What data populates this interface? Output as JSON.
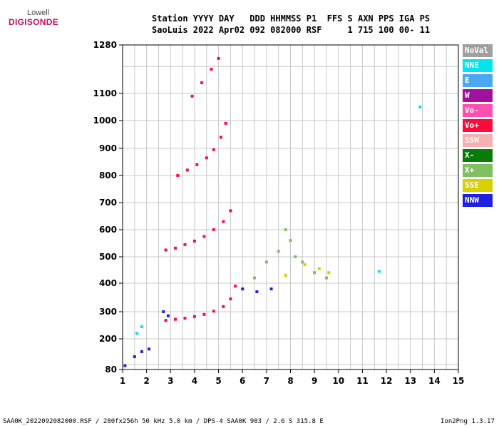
{
  "logo": {
    "line1": "Lowell",
    "line2": "DIGISONDE"
  },
  "header": {
    "line1": "Station YYYY DAY   DDD HHMMSS P1  FFS S AXN PPS IGA PS",
    "line2": "SaoLuis 2022 Apr02 092 082000 RSF     1 715 100 00- 11"
  },
  "footer": {
    "left": "SAA0K_2022092082000.RSF / 280fx256h 50 kHz 5.0 km / DPS-4 SAA0K 903 / 2.6 S 315.8 E",
    "right": "Ion2Png 1.3.17"
  },
  "legend": [
    {
      "label": "NoVal",
      "color": "#a0a0a0"
    },
    {
      "label": "NNE",
      "color": "#00e5ee"
    },
    {
      "label": "E",
      "color": "#4aa8f0"
    },
    {
      "label": "W",
      "color": "#a0129e"
    },
    {
      "label": "Vo-",
      "color": "#ff50b0"
    },
    {
      "label": "Vo+",
      "color": "#ff0a3c"
    },
    {
      "label": "SSW",
      "color": "#f5b0b0"
    },
    {
      "label": "X-",
      "color": "#0a7a0a"
    },
    {
      "label": "X+",
      "color": "#80c060"
    },
    {
      "label": "SSE",
      "color": "#d8d000"
    },
    {
      "label": "NNW",
      "color": "#2020e0"
    }
  ],
  "chart_data": {
    "type": "scatter",
    "x_ticks": [
      "1",
      "2",
      "3",
      "4",
      "5",
      "6",
      "7",
      "8",
      "9",
      "10",
      "11",
      "12",
      "13",
      "14",
      "15"
    ],
    "y_ticks": [
      "80",
      "200",
      "300",
      "400",
      "500",
      "600",
      "700",
      "800",
      "900",
      "1000",
      "1100",
      "1280"
    ],
    "xlim": [
      1,
      15
    ],
    "ylim": [
      80,
      1280
    ],
    "grid": true,
    "legend_position": "right",
    "series": [
      {
        "name": "Vo+",
        "color": "#ff0a3c",
        "points": [
          [
            2.8,
            268
          ],
          [
            3.2,
            272
          ],
          [
            3.6,
            276
          ],
          [
            4.0,
            282
          ],
          [
            4.4,
            290
          ],
          [
            4.8,
            302
          ],
          [
            5.2,
            318
          ],
          [
            5.5,
            345
          ],
          [
            5.7,
            390
          ],
          [
            2.8,
            525
          ],
          [
            3.2,
            532
          ],
          [
            3.6,
            545
          ],
          [
            4.0,
            558
          ],
          [
            4.4,
            575
          ],
          [
            4.8,
            600
          ],
          [
            5.2,
            630
          ],
          [
            5.5,
            670
          ],
          [
            3.3,
            800
          ],
          [
            3.7,
            820
          ],
          [
            4.1,
            840
          ],
          [
            4.5,
            865
          ],
          [
            4.8,
            895
          ],
          [
            5.1,
            940
          ],
          [
            5.3,
            990
          ],
          [
            3.9,
            1090
          ],
          [
            4.3,
            1140
          ],
          [
            4.7,
            1190
          ],
          [
            5.0,
            1230
          ]
        ]
      },
      {
        "name": "X+",
        "color": "#80c060",
        "points": [
          [
            6.5,
            420
          ],
          [
            7.0,
            480
          ],
          [
            7.5,
            520
          ],
          [
            8.0,
            560
          ],
          [
            8.5,
            480
          ],
          [
            9.0,
            440
          ],
          [
            9.5,
            420
          ],
          [
            7.8,
            600
          ],
          [
            8.2,
            500
          ]
        ]
      },
      {
        "name": "NNW",
        "color": "#2020e0",
        "points": [
          [
            1.1,
            95
          ],
          [
            1.5,
            130
          ],
          [
            1.8,
            150
          ],
          [
            2.1,
            160
          ],
          [
            2.7,
            300
          ],
          [
            2.9,
            285
          ],
          [
            6.0,
            380
          ],
          [
            6.6,
            370
          ],
          [
            7.2,
            380
          ]
        ]
      },
      {
        "name": "SSE",
        "color": "#d8d000",
        "points": [
          [
            7.8,
            430
          ],
          [
            8.6,
            470
          ],
          [
            9.2,
            455
          ],
          [
            9.6,
            440
          ]
        ]
      },
      {
        "name": "NNE",
        "color": "#00e5ee",
        "points": [
          [
            1.6,
            220
          ],
          [
            1.8,
            245
          ],
          [
            11.7,
            445
          ],
          [
            13.4,
            1050
          ]
        ]
      }
    ]
  }
}
